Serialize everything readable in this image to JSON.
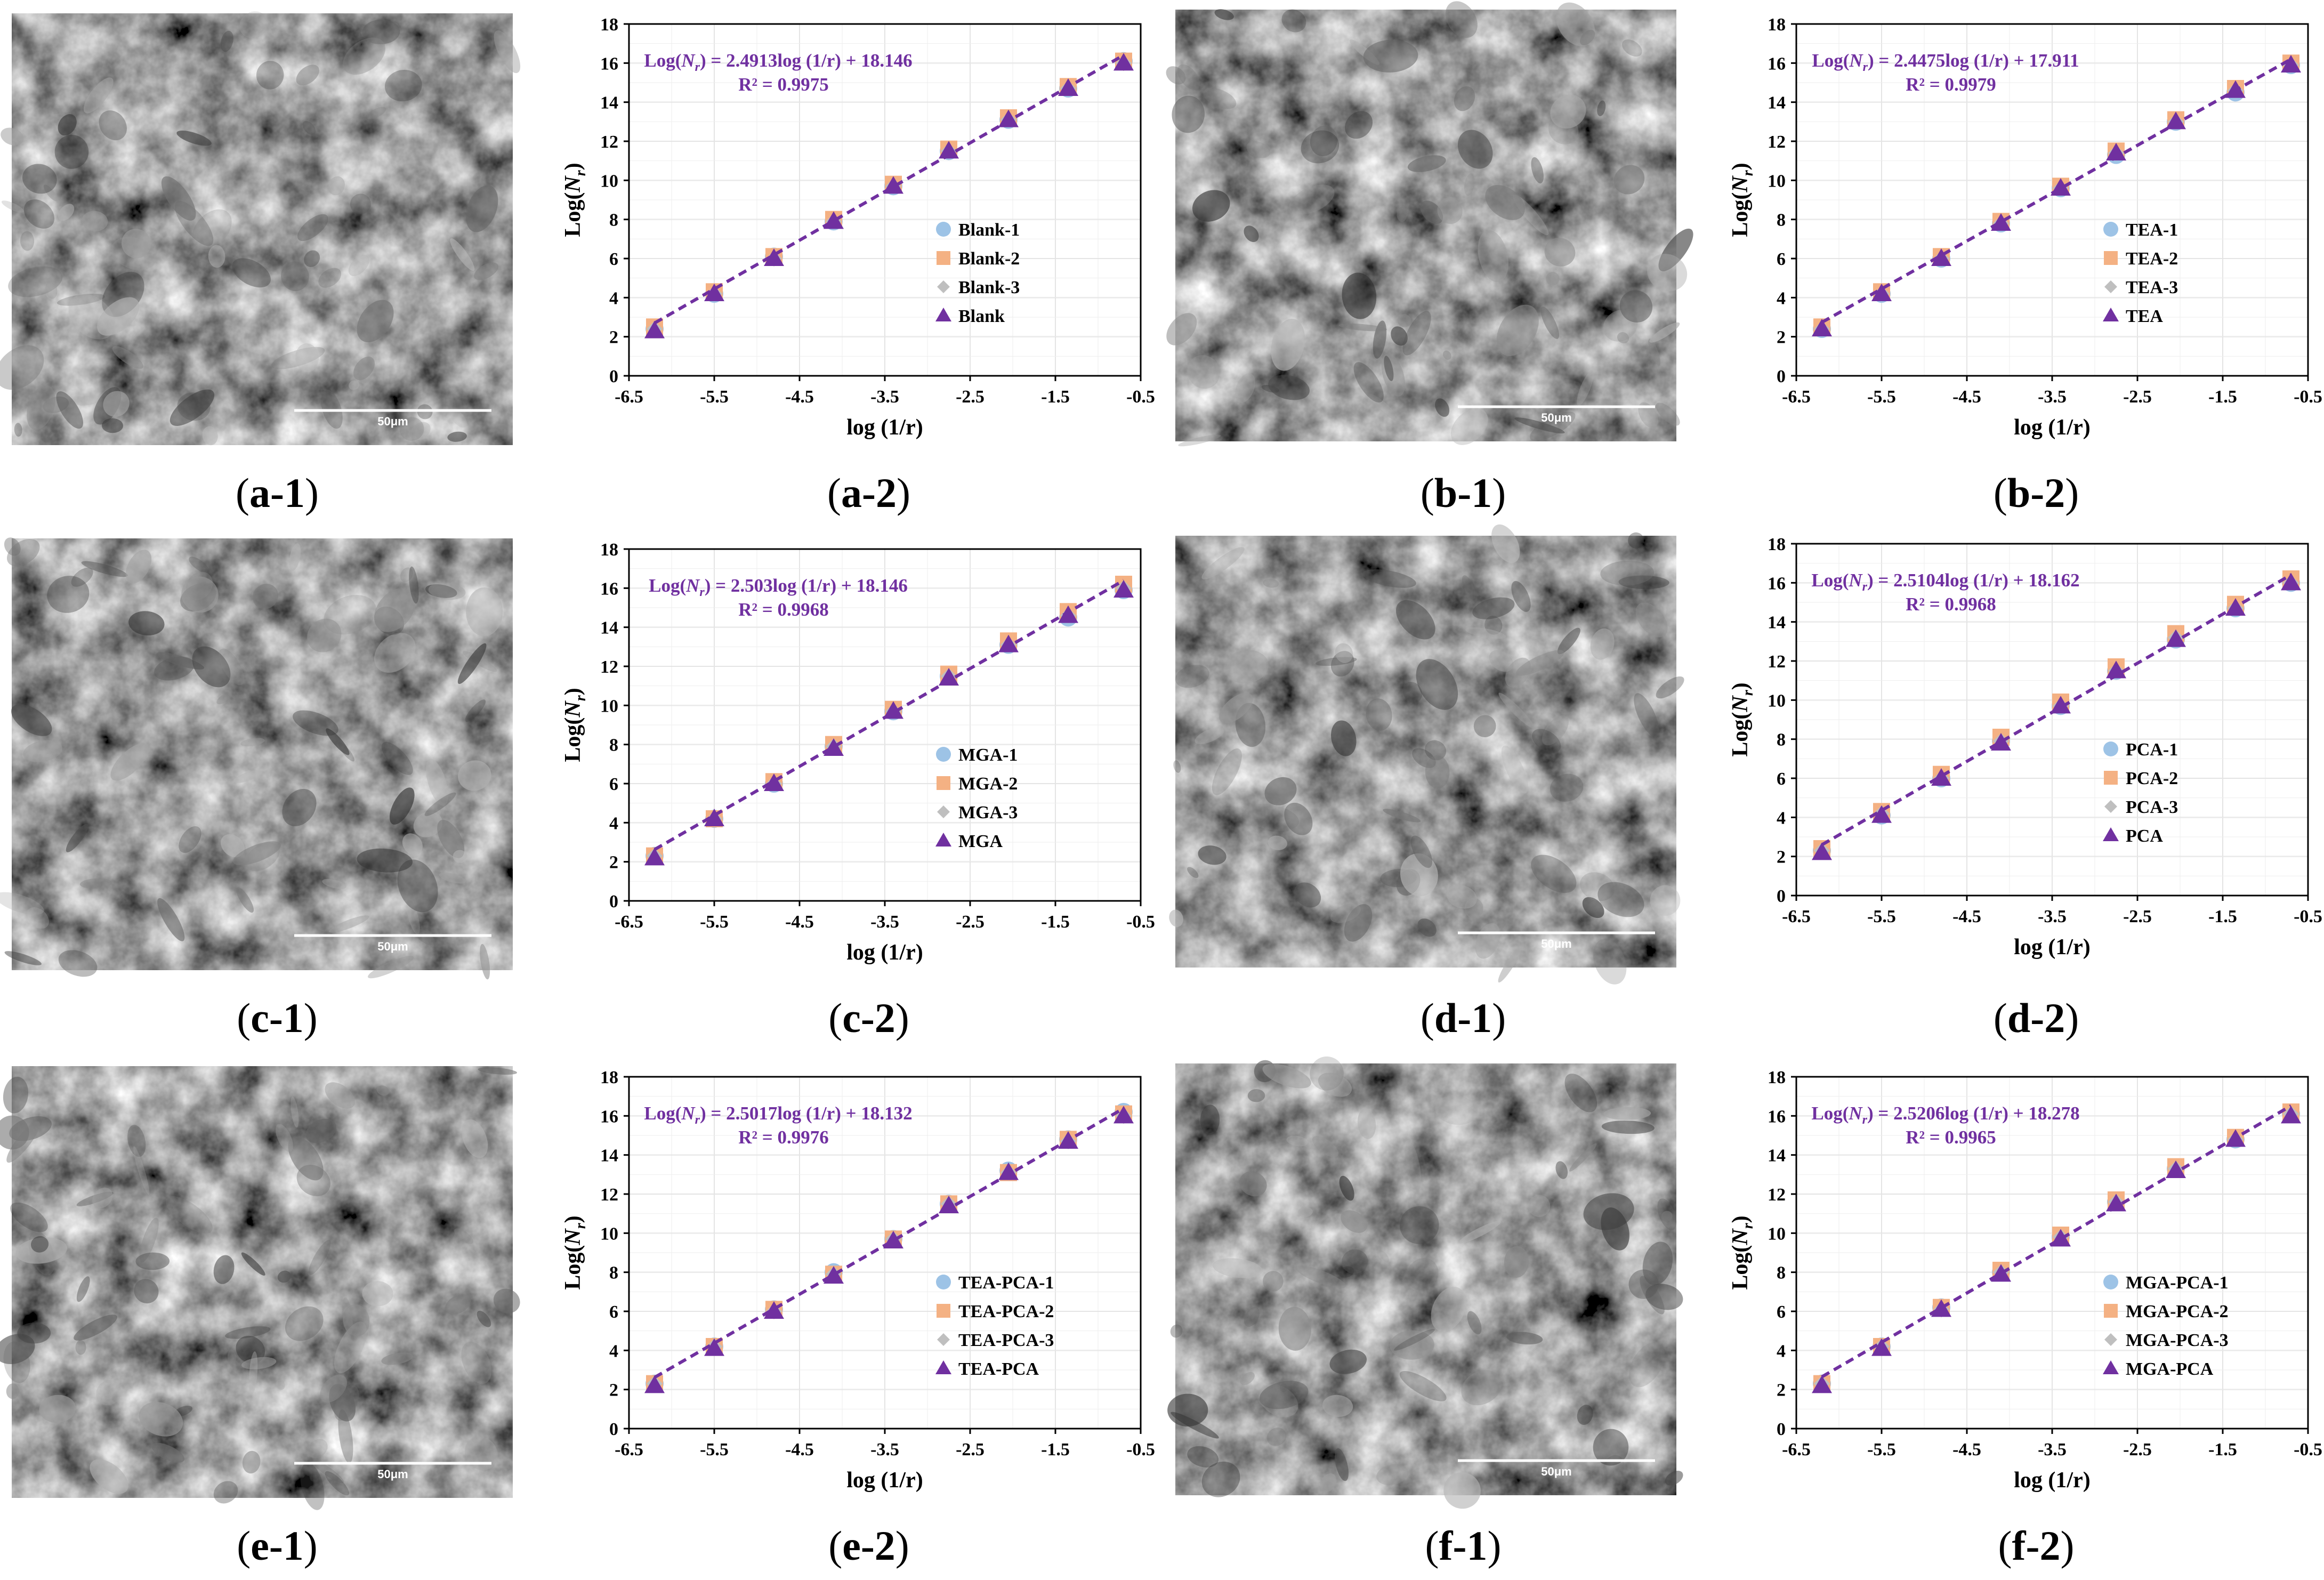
{
  "colors": {
    "fit_line": "#7030A0",
    "equation_text": "#7030A0",
    "series_1": "#9DC3E6",
    "series_2": "#F4B183",
    "series_3": "#BFBFBF",
    "series_mean": "#7030A0"
  },
  "sem_images": [
    {
      "scale_label": "50μm",
      "caption_letter": "a",
      "caption_num": "1"
    },
    {
      "scale_label": "50μm",
      "caption_letter": "b",
      "caption_num": "1"
    },
    {
      "scale_label": "50μm",
      "caption_letter": "c",
      "caption_num": "1"
    },
    {
      "scale_label": "50μm",
      "caption_letter": "d",
      "caption_num": "1"
    },
    {
      "scale_label": "50μm",
      "caption_letter": "e",
      "caption_num": "1"
    },
    {
      "scale_label": "50μm",
      "caption_letter": "f",
      "caption_num": "1"
    }
  ],
  "chart_data": [
    {
      "type": "scatter",
      "caption_letter": "a",
      "caption_num": "2",
      "equation_lhs": "Log(",
      "equation_var": "N",
      "equation_sub": "r",
      "equation_rhs": ") = 2.4913log (1/r) + 18.146",
      "r2": "R² = 0.9975",
      "xlabel": "log (1/r)",
      "ylabel_main": "Log(",
      "ylabel_var": "N",
      "ylabel_sub": "r",
      "ylabel_end": ")",
      "xlim": [
        -6.5,
        -0.5
      ],
      "ylim": [
        0,
        18
      ],
      "xticks": [
        "-6.5",
        "-5.5",
        "-4.5",
        "-3.5",
        "-2.5",
        "-1.5",
        "-0.5"
      ],
      "yticks": [
        "0",
        "2",
        "4",
        "6",
        "8",
        "10",
        "12",
        "14",
        "16",
        "18"
      ],
      "x": [
        -6.2,
        -5.5,
        -4.8,
        -4.1,
        -3.4,
        -2.75,
        -2.05,
        -1.35,
        -0.7
      ],
      "series": [
        {
          "name": "Blank-1",
          "values": [
            2.4,
            4.2,
            6.1,
            7.9,
            9.7,
            11.5,
            13.1,
            14.7,
            16.1
          ]
        },
        {
          "name": "Blank-2",
          "values": [
            2.5,
            4.3,
            6.1,
            8.0,
            9.8,
            11.6,
            13.2,
            14.8,
            16.1
          ]
        },
        {
          "name": "Blank-3",
          "values": [
            2.4,
            4.2,
            6.0,
            7.9,
            9.7,
            11.5,
            13.1,
            14.7,
            16.0
          ]
        },
        {
          "name": "Blank",
          "values": [
            2.3,
            4.2,
            6.0,
            7.9,
            9.7,
            11.5,
            13.1,
            14.7,
            16.0
          ]
        }
      ],
      "fit": {
        "slope": 2.4913,
        "intercept": 18.146
      }
    },
    {
      "type": "scatter",
      "caption_letter": "b",
      "caption_num": "2",
      "equation_lhs": "Log(",
      "equation_var": "N",
      "equation_sub": "r",
      "equation_rhs": ") = 2.4475log (1/r) + 17.911",
      "r2": "R² = 0.9979",
      "xlabel": "log (1/r)",
      "ylabel_main": "Log(",
      "ylabel_var": "N",
      "ylabel_sub": "r",
      "ylabel_end": ")",
      "xlim": [
        -6.5,
        -0.5
      ],
      "ylim": [
        0,
        18
      ],
      "xticks": [
        "-6.5",
        "-5.5",
        "-4.5",
        "-3.5",
        "-2.5",
        "-1.5",
        "-0.5"
      ],
      "yticks": [
        "0",
        "2",
        "4",
        "6",
        "8",
        "10",
        "12",
        "14",
        "16",
        "18"
      ],
      "x": [
        -6.2,
        -5.5,
        -4.8,
        -4.1,
        -3.4,
        -2.75,
        -2.05,
        -1.35,
        -0.7
      ],
      "series": [
        {
          "name": "TEA-1",
          "values": [
            2.4,
            4.2,
            6.0,
            7.8,
            9.6,
            11.3,
            13.0,
            14.5,
            15.9
          ]
        },
        {
          "name": "TEA-2",
          "values": [
            2.5,
            4.3,
            6.1,
            7.9,
            9.7,
            11.5,
            13.1,
            14.7,
            16.0
          ]
        },
        {
          "name": "TEA-3",
          "values": [
            2.4,
            4.2,
            6.0,
            7.8,
            9.6,
            11.4,
            13.0,
            14.6,
            15.9
          ]
        },
        {
          "name": "TEA",
          "values": [
            2.4,
            4.2,
            6.0,
            7.8,
            9.6,
            11.4,
            13.0,
            14.6,
            15.9
          ]
        }
      ],
      "fit": {
        "slope": 2.4475,
        "intercept": 17.911
      }
    },
    {
      "type": "scatter",
      "caption_letter": "c",
      "caption_num": "2",
      "equation_lhs": "Log(",
      "equation_var": "N",
      "equation_sub": "r",
      "equation_rhs": ") = 2.503log (1/r) + 18.146",
      "r2": "R² = 0.9968",
      "xlabel": "log (1/r)",
      "ylabel_main": "Log(",
      "ylabel_var": "N",
      "ylabel_sub": "r",
      "ylabel_end": ")",
      "xlim": [
        -6.5,
        -0.5
      ],
      "ylim": [
        0,
        18
      ],
      "xticks": [
        "-6.5",
        "-5.5",
        "-4.5",
        "-3.5",
        "-2.5",
        "-1.5",
        "-0.5"
      ],
      "yticks": [
        "0",
        "2",
        "4",
        "6",
        "8",
        "10",
        "12",
        "14",
        "16",
        "18"
      ],
      "x": [
        -6.2,
        -5.5,
        -4.8,
        -4.1,
        -3.4,
        -2.75,
        -2.05,
        -1.35,
        -0.7
      ],
      "series": [
        {
          "name": "MGA-1",
          "values": [
            2.3,
            4.2,
            6.0,
            7.9,
            9.7,
            11.5,
            13.1,
            14.5,
            15.9
          ]
        },
        {
          "name": "MGA-2",
          "values": [
            2.3,
            4.2,
            6.1,
            8.0,
            9.8,
            11.6,
            13.3,
            14.8,
            16.2
          ]
        },
        {
          "name": "MGA-3",
          "values": [
            2.3,
            4.2,
            6.0,
            7.9,
            9.7,
            11.5,
            13.1,
            14.6,
            16.0
          ]
        },
        {
          "name": "MGA",
          "values": [
            2.2,
            4.2,
            6.0,
            7.8,
            9.7,
            11.4,
            13.1,
            14.6,
            15.9
          ]
        }
      ],
      "fit": {
        "slope": 2.503,
        "intercept": 18.146
      }
    },
    {
      "type": "scatter",
      "caption_letter": "d",
      "caption_num": "2",
      "equation_lhs": "Log(",
      "equation_var": "N",
      "equation_sub": "r",
      "equation_rhs": ") = 2.5104log (1/r) + 18.162",
      "r2": "R² = 0.9968",
      "xlabel": "log (1/r)",
      "ylabel_main": "Log(",
      "ylabel_var": "N",
      "ylabel_sub": "r",
      "ylabel_end": ")",
      "xlim": [
        -6.5,
        -0.5
      ],
      "ylim": [
        0,
        18
      ],
      "xticks": [
        "-6.5",
        "-5.5",
        "-4.5",
        "-3.5",
        "-2.5",
        "-1.5",
        "-0.5"
      ],
      "yticks": [
        "0",
        "2",
        "4",
        "6",
        "8",
        "10",
        "12",
        "14",
        "16",
        "18"
      ],
      "x": [
        -6.2,
        -5.5,
        -4.8,
        -4.1,
        -3.4,
        -2.75,
        -2.05,
        -1.35,
        -0.7
      ],
      "series": [
        {
          "name": "PCA-1",
          "values": [
            2.3,
            4.1,
            6.0,
            7.9,
            9.7,
            11.5,
            13.1,
            14.7,
            16.0
          ]
        },
        {
          "name": "PCA-2",
          "values": [
            2.4,
            4.3,
            6.2,
            8.1,
            9.9,
            11.7,
            13.4,
            14.9,
            16.2
          ]
        },
        {
          "name": "PCA-3",
          "values": [
            2.3,
            4.2,
            6.0,
            7.9,
            9.7,
            11.5,
            13.2,
            14.7,
            16.0
          ]
        },
        {
          "name": "PCA",
          "values": [
            2.2,
            4.1,
            6.0,
            7.8,
            9.7,
            11.5,
            13.1,
            14.7,
            16.0
          ]
        }
      ],
      "fit": {
        "slope": 2.5104,
        "intercept": 18.162
      }
    },
    {
      "type": "scatter",
      "caption_letter": "e",
      "caption_num": "2",
      "equation_lhs": "Log(",
      "equation_var": "N",
      "equation_sub": "r",
      "equation_rhs": ") = 2.5017log (1/r) + 18.132",
      "r2": "R² = 0.9976",
      "xlabel": "log (1/r)",
      "ylabel_main": "Log(",
      "ylabel_var": "N",
      "ylabel_sub": "r",
      "ylabel_end": ")",
      "xlim": [
        -6.5,
        -0.5
      ],
      "ylim": [
        0,
        18
      ],
      "xticks": [
        "-6.5",
        "-5.5",
        "-4.5",
        "-3.5",
        "-2.5",
        "-1.5",
        "-0.5"
      ],
      "yticks": [
        "0",
        "2",
        "4",
        "6",
        "8",
        "10",
        "12",
        "14",
        "16",
        "18"
      ],
      "x": [
        -6.2,
        -5.5,
        -4.8,
        -4.1,
        -3.4,
        -2.75,
        -2.05,
        -1.35,
        -0.7
      ],
      "series": [
        {
          "name": "TEA-PCA-1",
          "values": [
            2.3,
            4.2,
            6.1,
            8.0,
            9.7,
            11.5,
            13.2,
            14.8,
            16.2
          ]
        },
        {
          "name": "TEA-PCA-2",
          "values": [
            2.3,
            4.2,
            6.1,
            7.9,
            9.7,
            11.5,
            13.1,
            14.8,
            16.1
          ]
        },
        {
          "name": "TEA-PCA-3",
          "values": [
            2.3,
            4.2,
            6.0,
            7.9,
            9.7,
            11.5,
            13.1,
            14.7,
            16.0
          ]
        },
        {
          "name": "TEA-PCA",
          "values": [
            2.2,
            4.1,
            6.0,
            7.8,
            9.6,
            11.4,
            13.1,
            14.7,
            16.0
          ]
        }
      ],
      "fit": {
        "slope": 2.5017,
        "intercept": 18.132
      }
    },
    {
      "type": "scatter",
      "caption_letter": "f",
      "caption_num": "2",
      "equation_lhs": "Log(",
      "equation_var": "N",
      "equation_sub": "r",
      "equation_rhs": ") = 2.5206log (1/r) + 18.278",
      "r2": "R² = 0.9965",
      "xlabel": "log (1/r)",
      "ylabel_main": "Log(",
      "ylabel_var": "N",
      "ylabel_sub": "r",
      "ylabel_end": ")",
      "xlim": [
        -6.5,
        -0.5
      ],
      "ylim": [
        0,
        18
      ],
      "xticks": [
        "-6.5",
        "-5.5",
        "-4.5",
        "-3.5",
        "-2.5",
        "-1.5",
        "-0.5"
      ],
      "yticks": [
        "0",
        "2",
        "4",
        "6",
        "8",
        "10",
        "12",
        "14",
        "16",
        "18"
      ],
      "x": [
        -6.2,
        -5.5,
        -4.8,
        -4.1,
        -3.4,
        -2.75,
        -2.05,
        -1.35,
        -0.7
      ],
      "series": [
        {
          "name": "MGA-PCA-1",
          "values": [
            2.3,
            4.2,
            6.2,
            8.0,
            9.8,
            11.6,
            13.3,
            14.8,
            16.1
          ]
        },
        {
          "name": "MGA-PCA-2",
          "values": [
            2.3,
            4.2,
            6.2,
            8.1,
            9.9,
            11.7,
            13.4,
            14.9,
            16.2
          ]
        },
        {
          "name": "MGA-PCA-3",
          "values": [
            2.3,
            4.2,
            6.1,
            8.0,
            9.8,
            11.6,
            13.3,
            14.8,
            16.1
          ]
        },
        {
          "name": "MGA-PCA",
          "values": [
            2.2,
            4.1,
            6.1,
            7.9,
            9.7,
            11.5,
            13.2,
            14.8,
            16.0
          ]
        }
      ],
      "fit": {
        "slope": 2.5206,
        "intercept": 18.278
      }
    }
  ]
}
